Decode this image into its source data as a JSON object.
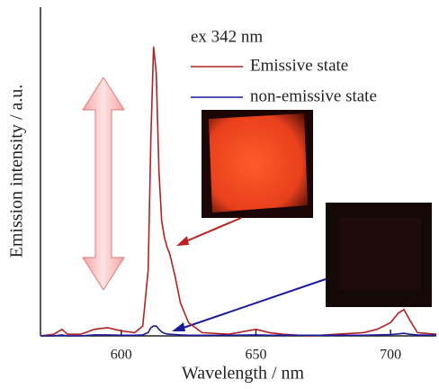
{
  "chart_data": {
    "type": "line",
    "x_label": "Wavelength / nm",
    "y_label": "Emission intensity / a.u.",
    "annotation": "ex 342 nm",
    "x": [
      570,
      575,
      578,
      580,
      585,
      590,
      595,
      600,
      605,
      608,
      610,
      611,
      612,
      613,
      614,
      615,
      616,
      617,
      618,
      620,
      622,
      625,
      630,
      640,
      650,
      655,
      660,
      670,
      680,
      690,
      695,
      700,
      703,
      705,
      707,
      710,
      717
    ],
    "series": [
      {
        "name": "Emissive state",
        "color": "#b22222",
        "values": [
          0,
          0.005,
          0.02,
          0.005,
          0.005,
          0.02,
          0.025,
          0.015,
          0.01,
          0.03,
          0.2,
          0.6,
          0.88,
          0.8,
          0.5,
          0.35,
          0.3,
          0.27,
          0.25,
          0.18,
          0.1,
          0.04,
          0.01,
          0.005,
          0.02,
          0.01,
          0.005,
          0,
          0.005,
          0.01,
          0.02,
          0.04,
          0.07,
          0.08,
          0.05,
          0.01,
          0.005
        ]
      },
      {
        "name": "non-emissive state",
        "color": "#1a1a9c",
        "values": [
          0,
          0,
          0.003,
          0,
          0,
          0.003,
          0.003,
          0.002,
          0.002,
          0.003,
          0.01,
          0.025,
          0.03,
          0.03,
          0.02,
          0.012,
          0.008,
          0.006,
          0.005,
          0.004,
          0.003,
          0.002,
          0.002,
          0.002,
          0.003,
          0.002,
          0.002,
          0.002,
          0.002,
          0.002,
          0.003,
          0.004,
          0.006,
          0.008,
          0.005,
          0.003,
          0.002
        ]
      }
    ],
    "xlim": [
      570,
      717
    ],
    "xticks": [
      600,
      650,
      700
    ],
    "ylim": [
      0,
      1
    ]
  }
}
